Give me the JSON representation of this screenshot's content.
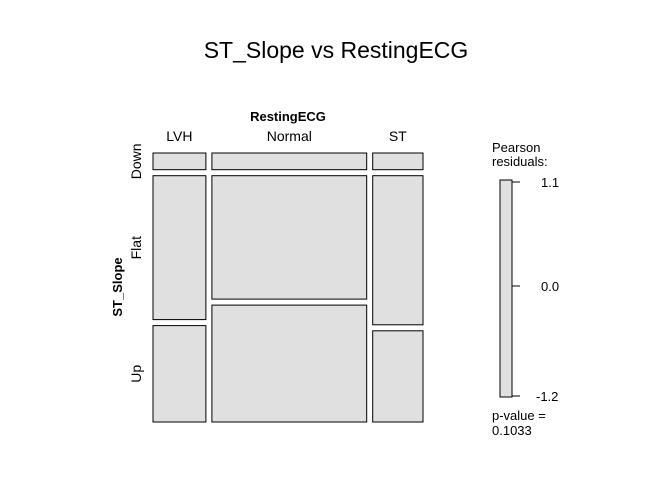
{
  "chart_data": {
    "type": "mosaic",
    "title": "ST_Slope vs RestingECG",
    "x_variable": "RestingECG",
    "y_variable": "ST_Slope",
    "x_categories": [
      "LVH",
      "Normal",
      "ST"
    ],
    "y_categories": [
      "Down",
      "Flat",
      "Up"
    ],
    "column_proportions": [
      0.205,
      0.6,
      0.195
    ],
    "cell_proportions_within_column": {
      "LVH": {
        "Down": 0.065,
        "Flat": 0.56,
        "Up": 0.375
      },
      "Normal": {
        "Down": 0.065,
        "Flat": 0.48,
        "Up": 0.455
      },
      "ST": {
        "Down": 0.065,
        "Flat": 0.58,
        "Up": 0.355
      }
    },
    "legend": {
      "title_line1": "Pearson",
      "title_line2": "residuals:",
      "max_label": "1.1",
      "mid_label": "0.0",
      "min_label": "-1.2",
      "range": [
        -1.2,
        1.1
      ],
      "fill_color": "#e0e0e0"
    },
    "pvalue_line1": "p-value =",
    "pvalue_line2": "0.1033",
    "tile_fill": "#e0e0e0"
  }
}
